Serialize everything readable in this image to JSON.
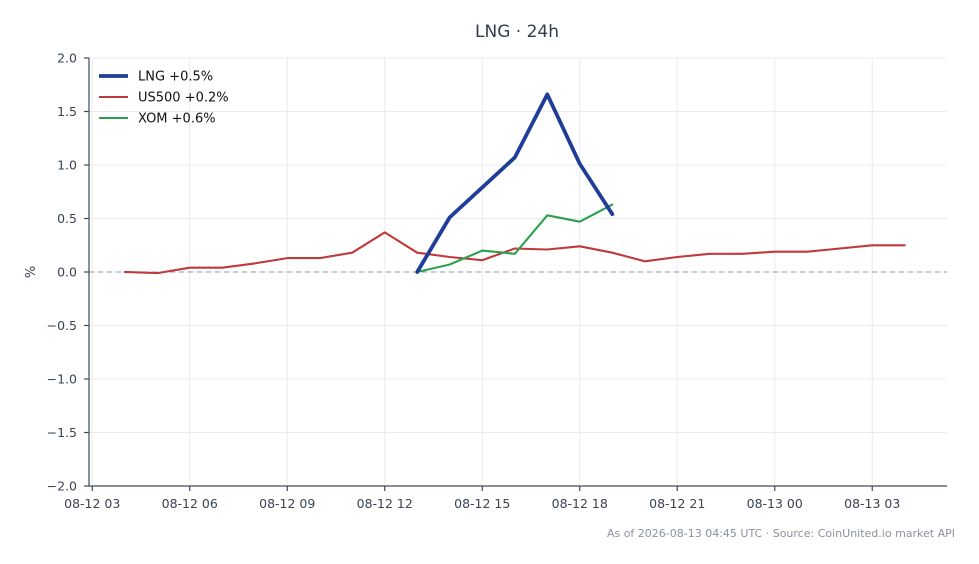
{
  "chart_data": {
    "type": "line",
    "title": "LNG · 24h",
    "xlabel": "",
    "ylabel": "%",
    "x_tick_labels": [
      "08-12 03",
      "08-12 06",
      "08-12 09",
      "08-12 12",
      "08-12 15",
      "08-12 18",
      "08-12 21",
      "08-13 00",
      "08-13 03"
    ],
    "x_tick_hours": [
      3,
      6,
      9,
      12,
      15,
      18,
      21,
      24,
      27
    ],
    "xlim_hours": [
      2.9,
      29.3
    ],
    "ylim": [
      -2.0,
      2.0
    ],
    "y_ticks": [
      "2.0",
      "1.5",
      "1.0",
      "0.5",
      "0.0",
      "−0.5",
      "−1.0",
      "−1.5",
      "−2.0"
    ],
    "y_tick_values": [
      2.0,
      1.5,
      1.0,
      0.5,
      0.0,
      -0.5,
      -1.0,
      -1.5,
      -2.0
    ],
    "grid": true,
    "legend_position": "top-left",
    "series": [
      {
        "name": "LNG +0.5%",
        "color": "#1f3d99",
        "x_hours": [
          13,
          14,
          15,
          16,
          17,
          18,
          19
        ],
        "values": [
          0.0,
          0.51,
          0.79,
          1.07,
          1.66,
          1.01,
          0.54
        ]
      },
      {
        "name": "US500 +0.2%",
        "color": "#c0393b",
        "x_hours": [
          4,
          5,
          6,
          7,
          8,
          9,
          10,
          11,
          12,
          13,
          14,
          15,
          16,
          17,
          18,
          19,
          20,
          21,
          22,
          23,
          24,
          25,
          26,
          27,
          28
        ],
        "values": [
          0.0,
          -0.01,
          0.04,
          0.04,
          0.08,
          0.13,
          0.13,
          0.18,
          0.37,
          0.18,
          0.14,
          0.11,
          0.22,
          0.21,
          0.24,
          0.18,
          0.1,
          0.14,
          0.17,
          0.17,
          0.19,
          0.19,
          0.22,
          0.25,
          0.25
        ]
      },
      {
        "name": "XOM +0.6%",
        "color": "#2ca04c",
        "x_hours": [
          13,
          14,
          15,
          16,
          17,
          18,
          19
        ],
        "values": [
          0.0,
          0.07,
          0.2,
          0.17,
          0.53,
          0.47,
          0.63
        ]
      }
    ],
    "footer": "As of 2026-08-13 04:45 UTC · Source: CoinUnited.io market API"
  }
}
